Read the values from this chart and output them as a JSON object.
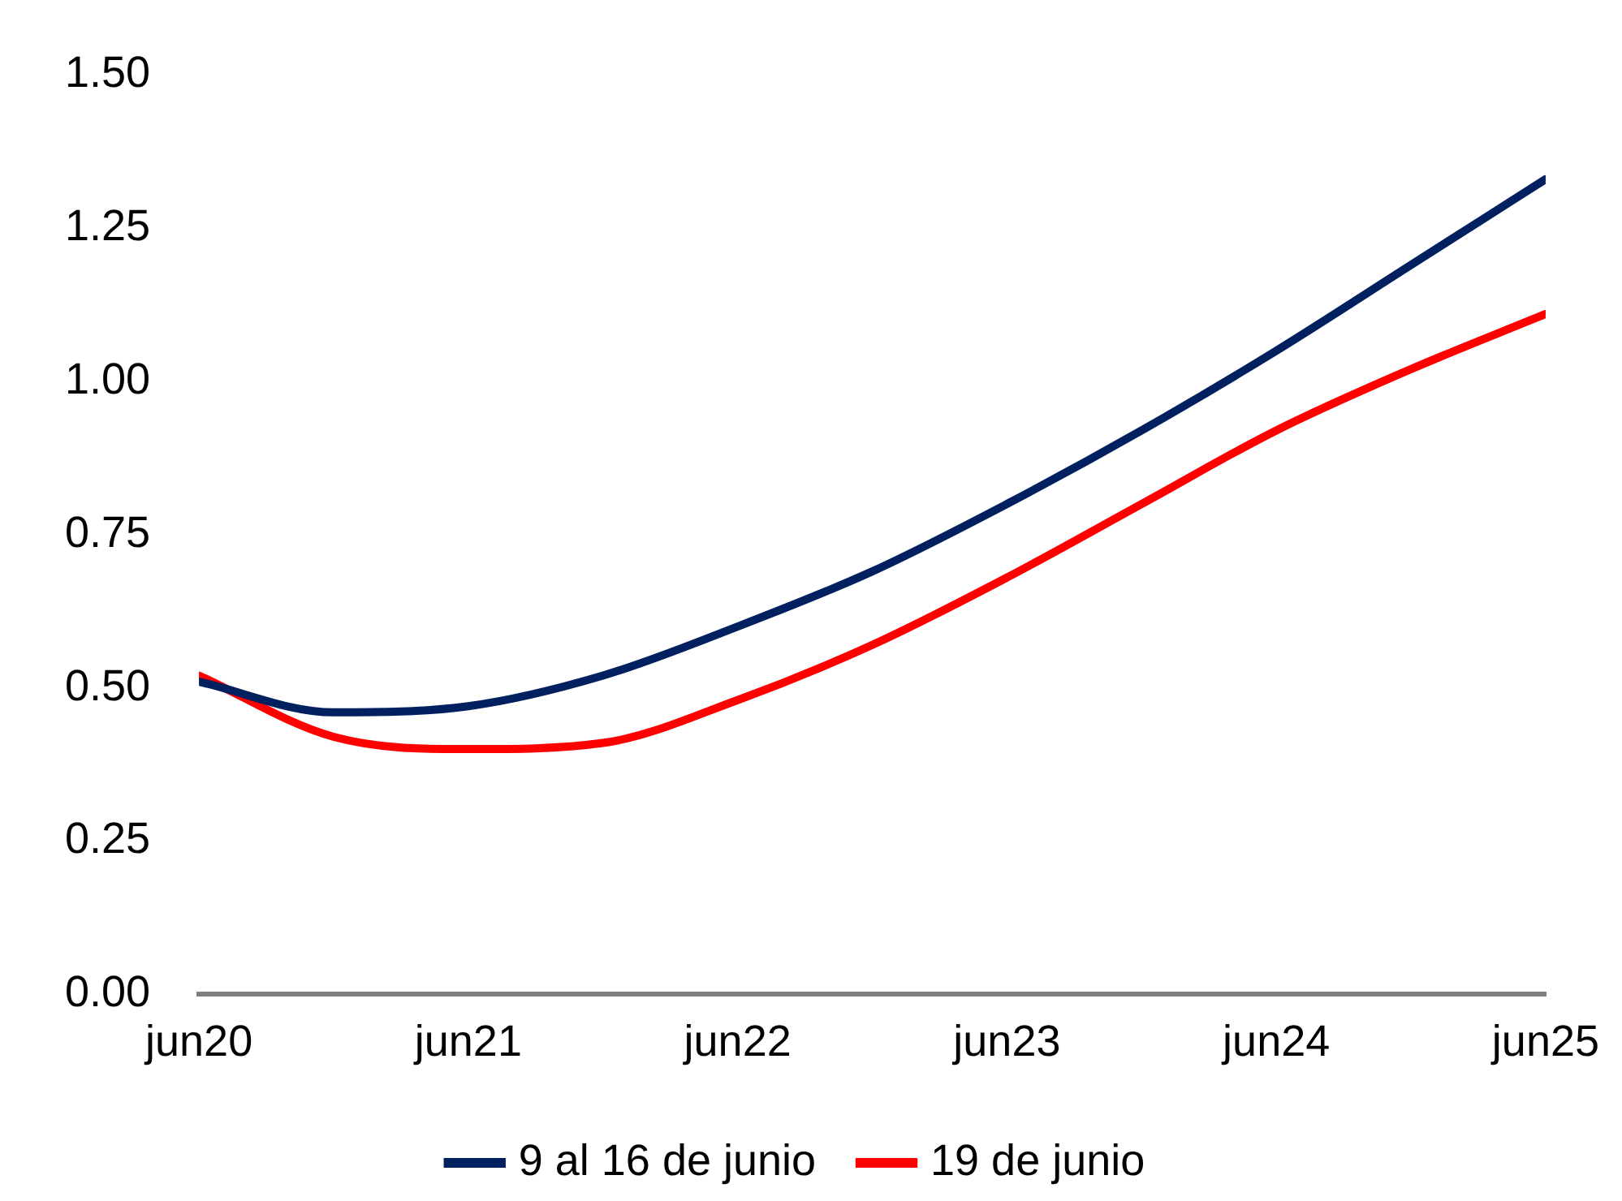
{
  "chart_data": {
    "type": "line",
    "x": [
      "2020-06",
      "2020-12",
      "2021-06",
      "2021-12",
      "2022-06",
      "2022-12",
      "2023-06",
      "2023-12",
      "2024-06",
      "2024-12",
      "2025-06"
    ],
    "series": [
      {
        "name": "9 al 16 de junio",
        "color": "#002060",
        "values": [
          0.51,
          0.46,
          0.47,
          0.52,
          0.6,
          0.69,
          0.8,
          0.92,
          1.05,
          1.19,
          1.33
        ]
      },
      {
        "name": "19 de junio",
        "color": "#ff0000",
        "values": [
          0.52,
          0.42,
          0.4,
          0.41,
          0.48,
          0.57,
          0.68,
          0.8,
          0.92,
          1.02,
          1.11
        ]
      }
    ],
    "xlim": [
      "2020-06",
      "2025-06"
    ],
    "xticks": [
      {
        "value": "2020-06",
        "label": "jun20"
      },
      {
        "value": "2021-06",
        "label": "jun21"
      },
      {
        "value": "2022-06",
        "label": "jun22"
      },
      {
        "value": "2023-06",
        "label": "jun23"
      },
      {
        "value": "2024-06",
        "label": "jun24"
      },
      {
        "value": "2025-06",
        "label": "jun25"
      }
    ],
    "ylim": [
      0,
      1.5
    ],
    "yticks": [
      {
        "value": 0,
        "label": "0.00"
      },
      {
        "value": 0.25,
        "label": "0.25"
      },
      {
        "value": 0.5,
        "label": "0.50"
      },
      {
        "value": 0.75,
        "label": "0.75"
      },
      {
        "value": 1,
        "label": "1.00"
      },
      {
        "value": 1.25,
        "label": "1.25"
      },
      {
        "value": 1.5,
        "label": "1.50"
      }
    ],
    "grid": false,
    "legend": "bottom",
    "marker": "none",
    "line_style": "solid"
  }
}
